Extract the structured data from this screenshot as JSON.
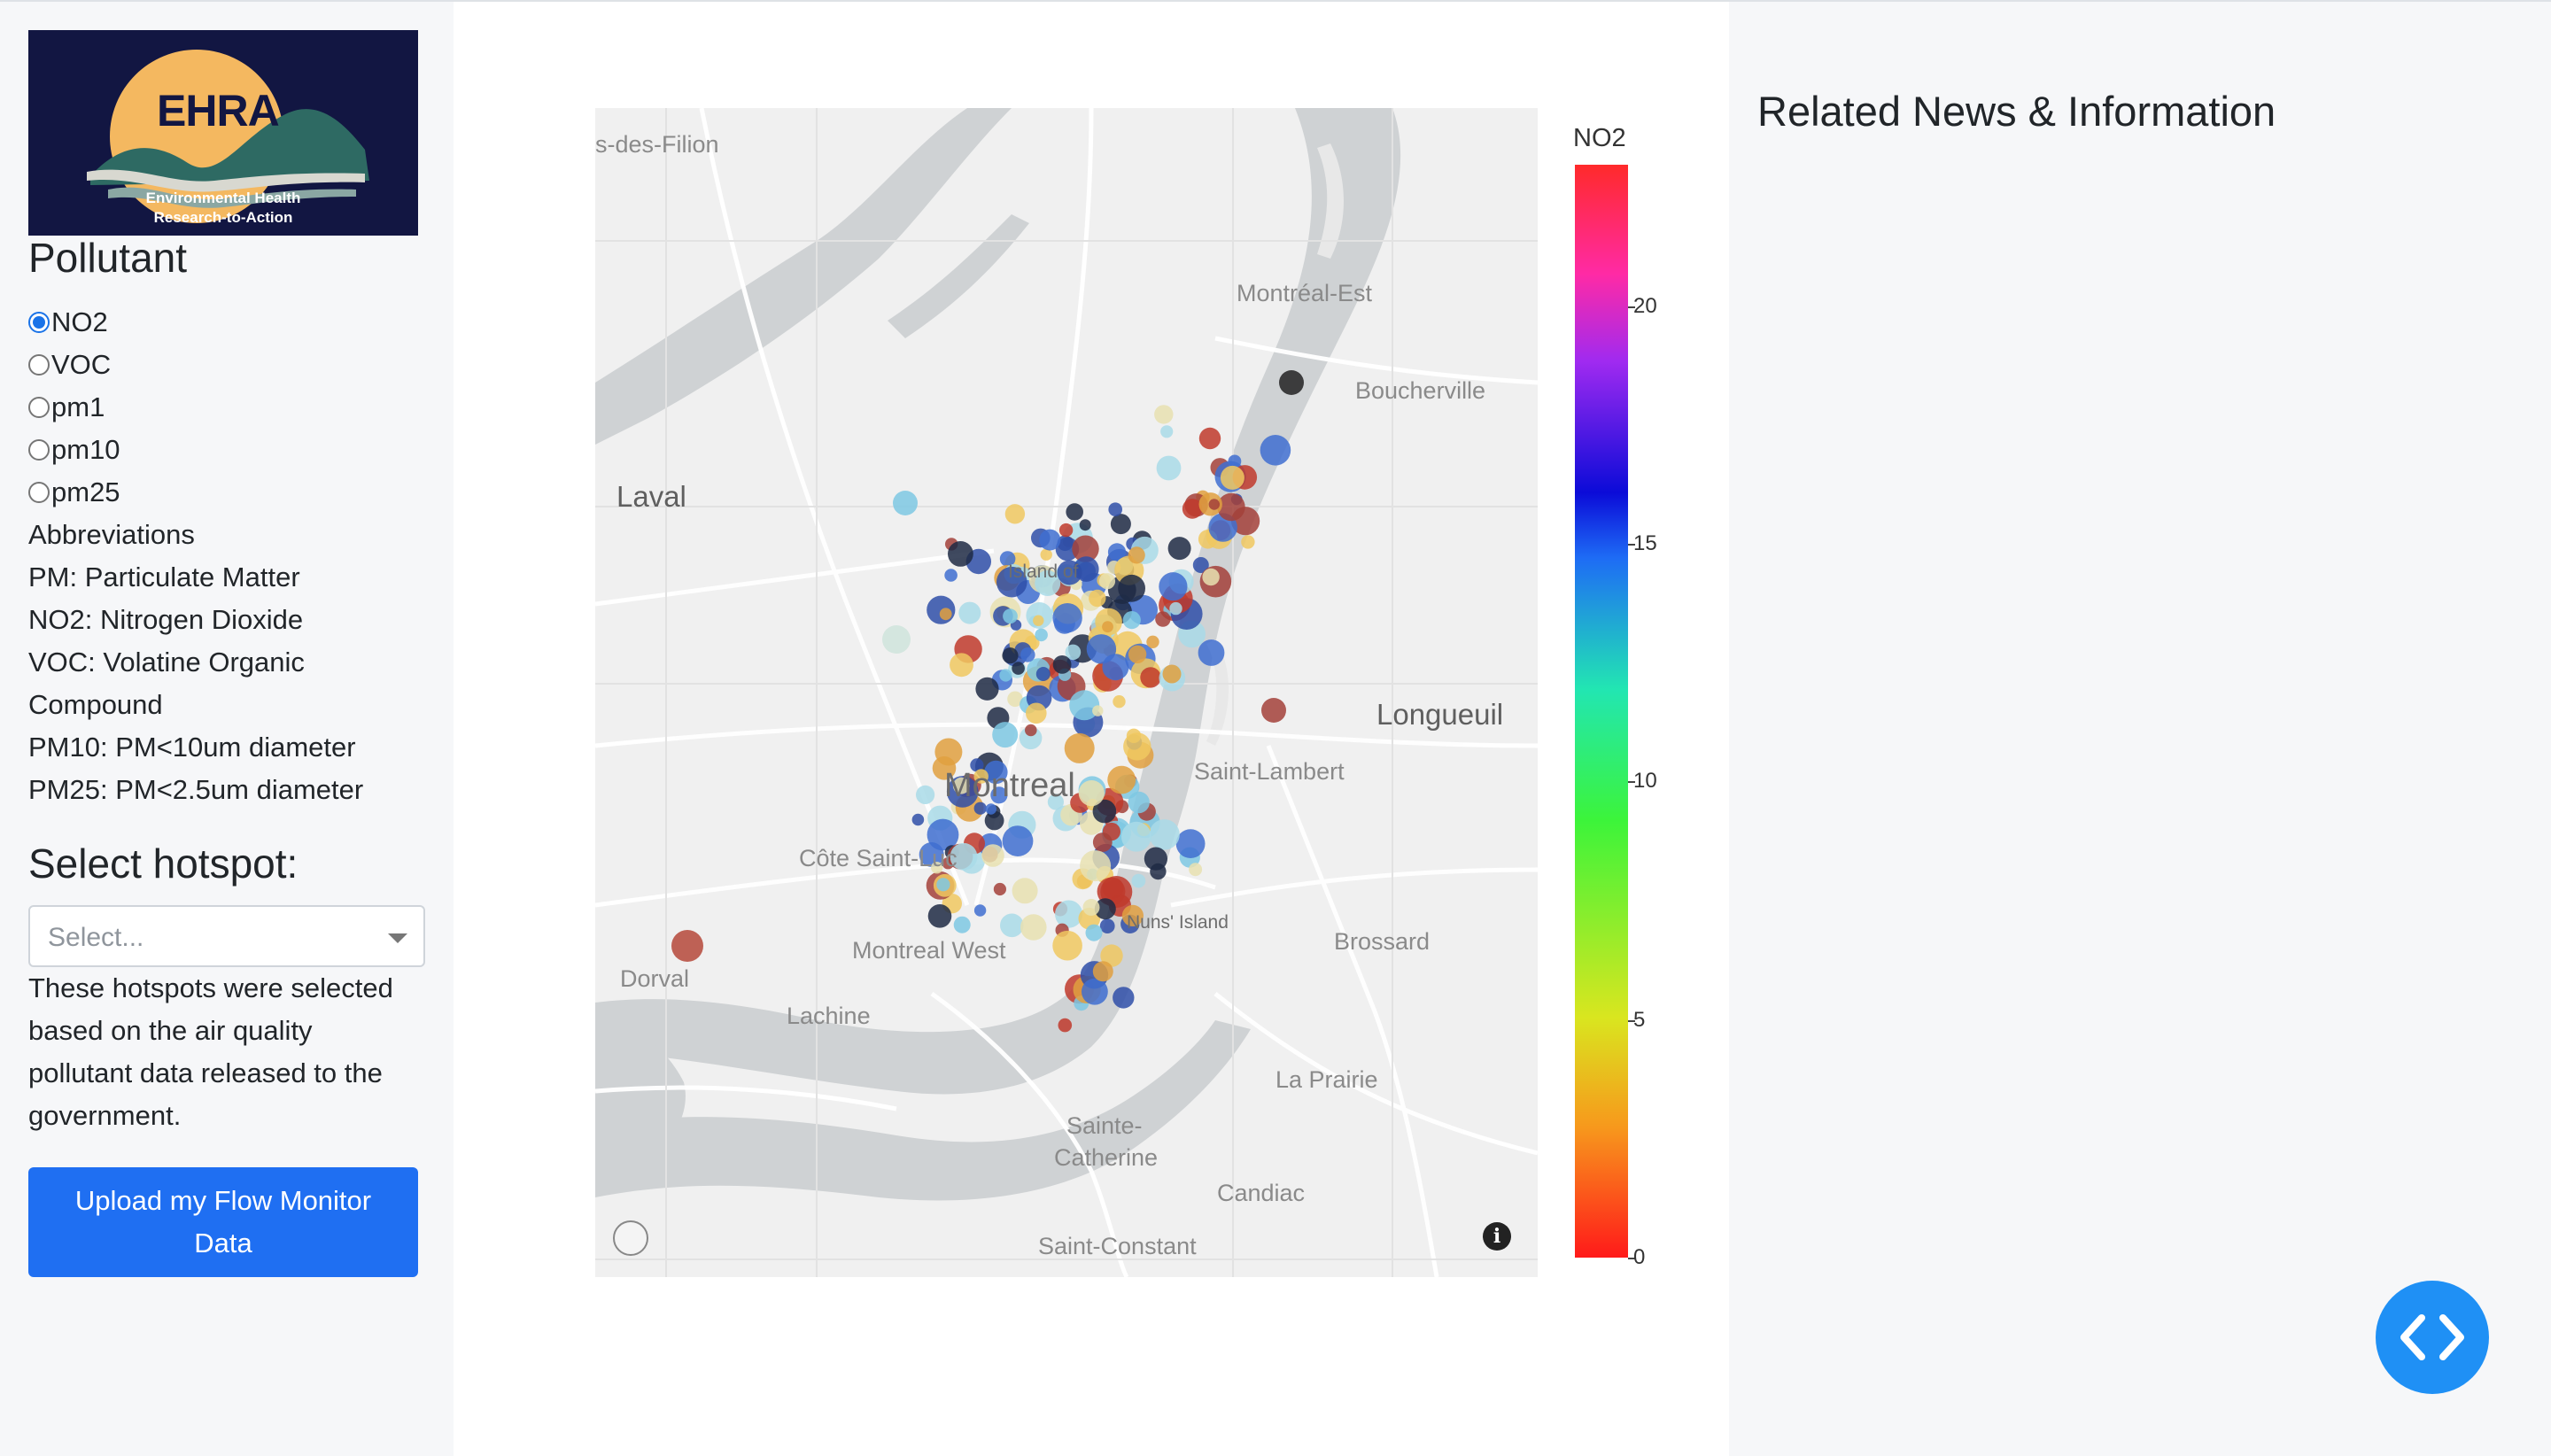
{
  "logo": {
    "title": "EHRA",
    "line1": "Environmental Health",
    "line2": "Research-to-Action"
  },
  "pollutant": {
    "heading": "Pollutant",
    "options": [
      "NO2",
      "VOC",
      "pm1",
      "pm10",
      "pm25"
    ],
    "selected": "NO2"
  },
  "abbreviations": {
    "heading": "Abbreviations",
    "lines": [
      "PM: Particulate Matter",
      "NO2: Nitrogen Dioxide",
      "VOC: Volatine Organic",
      "Compound",
      "PM10: PM<10um diameter",
      "PM25: PM<2.5um diameter"
    ]
  },
  "hotspot": {
    "heading": "Select hotspot:",
    "placeholder": "Select...",
    "description_lines": [
      "These hotspots were selected",
      "based on the air quality",
      "pollutant data released to the",
      "government."
    ]
  },
  "upload_button": {
    "line1": "Upload my Flow Monitor",
    "line2": "Data"
  },
  "map": {
    "places": {
      "filion": "s-des-Filion",
      "laval": "Laval",
      "montreal_est": "Montréal-Est",
      "boucherville": "Boucherville",
      "island_of": "Island of",
      "longueuil": "Longueuil",
      "saint_lambert": "Saint-Lambert",
      "montreal": "Montreal",
      "cote_saint_luc": "Côte Saint-Luc",
      "nuns_island": "Nuns' Island",
      "brossard": "Brossard",
      "montreal_west": "Montreal West",
      "dorval": "Dorval",
      "lachine": "Lachine",
      "la_prairie": "La Prairie",
      "sainte": "Sainte-",
      "catherine": "Catherine",
      "candiac": "Candiac",
      "saint_constant": "Saint-Constant"
    },
    "info_icon": "info-icon",
    "mapbox_icon": "mapbox-logo-icon"
  },
  "colorbar": {
    "title": "NO2",
    "ticks": [
      "20",
      "15",
      "10",
      "5",
      "0"
    ],
    "colors": {
      "low": "#ff1a1a",
      "mid": "#3cf43a",
      "high15": "#0b0bd8",
      "top": "#ff2a2a"
    }
  },
  "right_panel": {
    "heading": "Related News & Information"
  },
  "code_button": {
    "icon": "code-brackets-icon",
    "color": "#1f90f5"
  }
}
